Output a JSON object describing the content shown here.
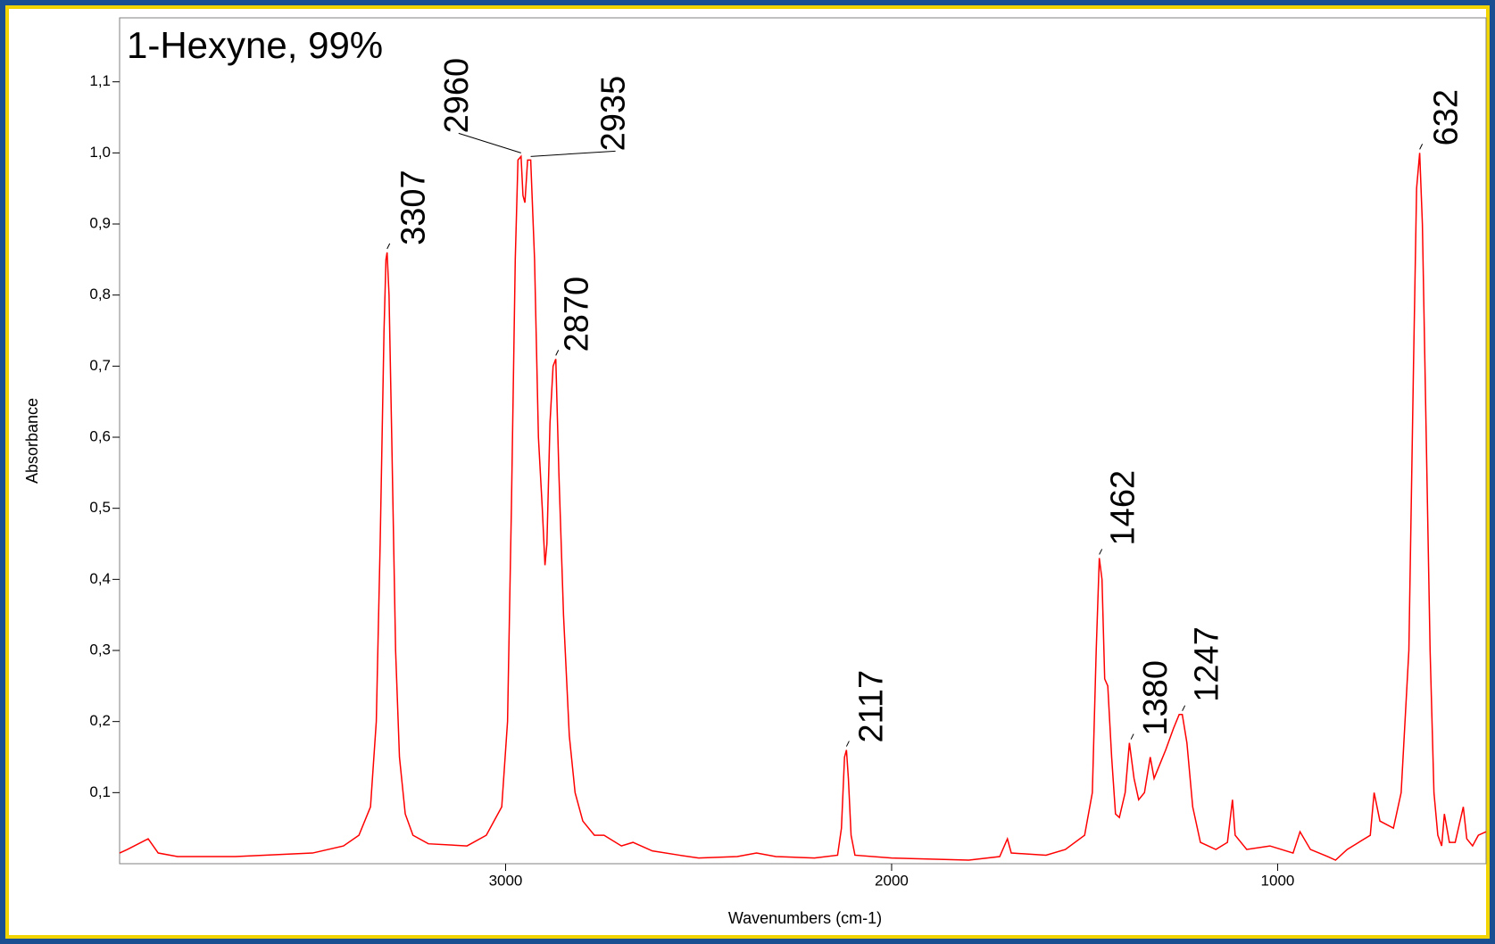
{
  "chart_data": {
    "type": "line",
    "title": "1-Hexyne, 99%",
    "x_label": "Wavenumbers (cm-1)",
    "y_label": "Absorbance",
    "color": "#ff0000",
    "title_color": "#ff0000",
    "xlim": [
      4000,
      460
    ],
    "ylim": [
      0,
      1.19
    ],
    "xticks": [
      3000,
      2000,
      1000
    ],
    "yticks": [
      {
        "value": 0.1,
        "label": "0,1"
      },
      {
        "value": 0.2,
        "label": "0,2"
      },
      {
        "value": 0.3,
        "label": "0,3"
      },
      {
        "value": 0.4,
        "label": "0,4"
      },
      {
        "value": 0.5,
        "label": "0,5"
      },
      {
        "value": 0.6,
        "label": "0,6"
      },
      {
        "value": 0.7,
        "label": "0,7"
      },
      {
        "value": 0.8,
        "label": "0,8"
      },
      {
        "value": 0.9,
        "label": "0,9"
      },
      {
        "value": 1.0,
        "label": "1,0"
      },
      {
        "value": 1.1,
        "label": "1,1"
      }
    ],
    "x": [
      4000,
      3980,
      3926,
      3900,
      3850,
      3700,
      3500,
      3420,
      3380,
      3350,
      3335,
      3325,
      3315,
      3310,
      3307,
      3302,
      3295,
      3285,
      3275,
      3260,
      3240,
      3200,
      3100,
      3050,
      3010,
      2995,
      2985,
      2975,
      2968,
      2960,
      2955,
      2950,
      2943,
      2935,
      2925,
      2915,
      2905,
      2898,
      2893,
      2885,
      2877,
      2870,
      2862,
      2850,
      2835,
      2820,
      2800,
      2770,
      2745,
      2700,
      2670,
      2620,
      2550,
      2500,
      2400,
      2350,
      2300,
      2200,
      2140,
      2130,
      2122,
      2117,
      2112,
      2105,
      2095,
      2000,
      1800,
      1720,
      1700,
      1690,
      1600,
      1550,
      1500,
      1480,
      1470,
      1462,
      1455,
      1448,
      1440,
      1430,
      1420,
      1410,
      1395,
      1384,
      1372,
      1360,
      1345,
      1330,
      1320,
      1305,
      1290,
      1270,
      1255,
      1247,
      1235,
      1220,
      1200,
      1160,
      1130,
      1117,
      1110,
      1080,
      1020,
      990,
      960,
      942,
      915,
      870,
      850,
      820,
      790,
      760,
      750,
      735,
      700,
      680,
      660,
      648,
      640,
      632,
      625,
      615,
      605,
      595,
      585,
      575,
      568,
      555,
      540,
      519,
      510,
      495,
      480,
      460
    ],
    "values": [
      0.015,
      0.02,
      0.035,
      0.015,
      0.01,
      0.01,
      0.015,
      0.025,
      0.04,
      0.08,
      0.2,
      0.45,
      0.75,
      0.85,
      0.86,
      0.8,
      0.6,
      0.3,
      0.15,
      0.07,
      0.04,
      0.028,
      0.025,
      0.04,
      0.08,
      0.2,
      0.5,
      0.85,
      0.99,
      0.995,
      0.94,
      0.93,
      0.99,
      0.99,
      0.85,
      0.6,
      0.5,
      0.42,
      0.45,
      0.62,
      0.7,
      0.71,
      0.55,
      0.35,
      0.18,
      0.1,
      0.06,
      0.04,
      0.04,
      0.025,
      0.03,
      0.018,
      0.012,
      0.008,
      0.01,
      0.015,
      0.01,
      0.008,
      0.012,
      0.05,
      0.15,
      0.16,
      0.12,
      0.04,
      0.012,
      0.008,
      0.005,
      0.01,
      0.035,
      0.015,
      0.012,
      0.02,
      0.04,
      0.1,
      0.3,
      0.43,
      0.4,
      0.26,
      0.25,
      0.15,
      0.07,
      0.065,
      0.1,
      0.17,
      0.12,
      0.09,
      0.1,
      0.15,
      0.12,
      0.14,
      0.16,
      0.19,
      0.21,
      0.21,
      0.17,
      0.08,
      0.03,
      0.02,
      0.03,
      0.09,
      0.04,
      0.02,
      0.025,
      0.02,
      0.015,
      0.045,
      0.02,
      0.01,
      0.005,
      0.02,
      0.03,
      0.04,
      0.1,
      0.06,
      0.05,
      0.1,
      0.3,
      0.7,
      0.95,
      1.0,
      0.9,
      0.6,
      0.3,
      0.1,
      0.04,
      0.025,
      0.07,
      0.03,
      0.03,
      0.08,
      0.035,
      0.025,
      0.04,
      0.045
    ],
    "peak_labels": [
      3307,
      2960,
      2935,
      2870,
      2117,
      1462,
      1380,
      1247,
      632
    ]
  }
}
